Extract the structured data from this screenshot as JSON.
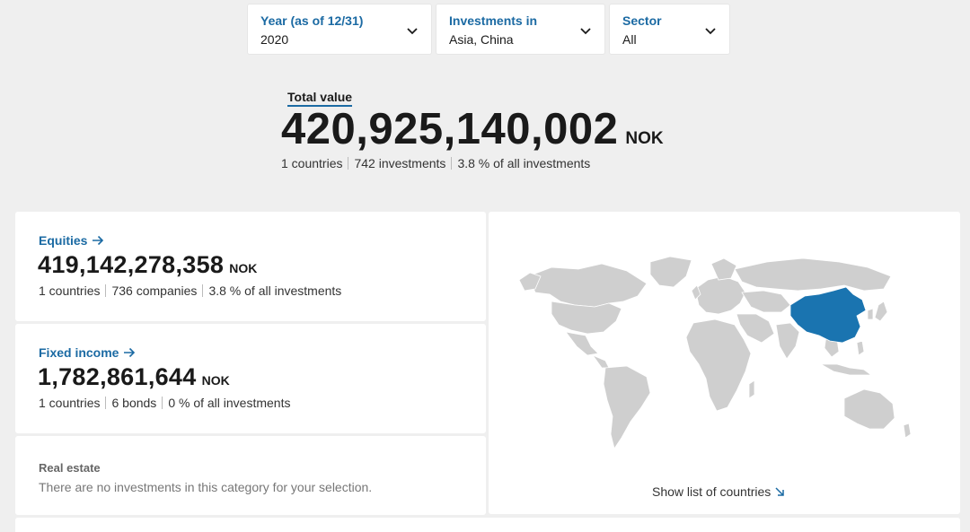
{
  "filters": [
    {
      "label": "Year (as of 12/31)",
      "value": "2020"
    },
    {
      "label": "Investments in",
      "value": "Asia, China"
    },
    {
      "label": "Sector",
      "value": "All"
    }
  ],
  "total": {
    "label": "Total value",
    "amount": "420,925,140,002",
    "unit": "NOK",
    "countries": "1 countries",
    "investments": "742 investments",
    "share": "3.8 % of all investments"
  },
  "equities": {
    "title": "Equities",
    "amount": "419,142,278,358",
    "unit": "NOK",
    "countries": "1 countries",
    "count": "736 companies",
    "share": "3.8 % of all investments"
  },
  "fixed_income": {
    "title": "Fixed income",
    "amount": "1,782,861,644",
    "unit": "NOK",
    "countries": "1 countries",
    "count": "6 bonds",
    "share": "0 % of all investments"
  },
  "real_estate": {
    "title": "Real estate",
    "text": "There are no investments in this category for your selection."
  },
  "map": {
    "show_list_label": "Show list of countries",
    "highlighted_country": "China",
    "highlight_color": "#1a74b0",
    "land_color": "#cfcfcf"
  },
  "colors": {
    "accent": "#1b6aa3",
    "background": "#efefef"
  }
}
